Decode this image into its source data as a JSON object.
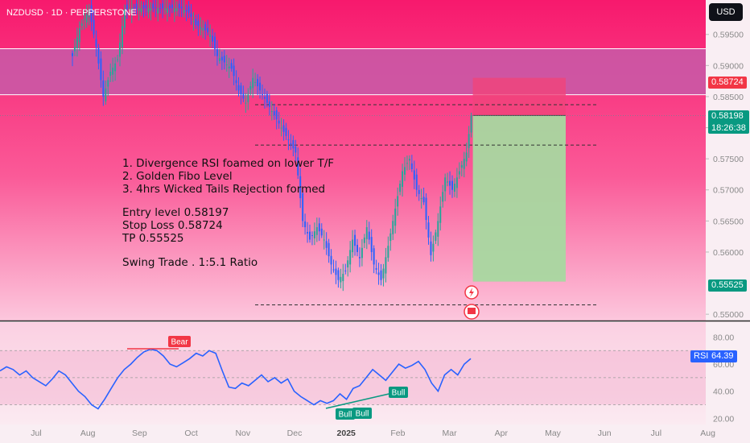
{
  "symbol": "NZDUSD · 1D · PEPPERSTONE",
  "currency_button": "USD",
  "notes": [
    "1. Divergence RSI foamed on lower T/F",
    "2. Golden Fibo Level",
    "3. 4hrs  Wicked Tails Rejection formed",
    "",
    "Entry level 0.58197",
    "Stop Loss 0.58724",
    "TP 0.55525",
    "",
    "Swing Trade . 1:5.1 Ratio"
  ],
  "price_tags": {
    "stop": "0.58724",
    "current": "0.58198",
    "countdown": "18:26:38",
    "target": "0.55525"
  },
  "rsi_tag": {
    "label": "RSI",
    "value": "64.39"
  },
  "colors": {
    "up": "#26a69a",
    "down": "#2962ff",
    "stop_zone": "#f0447a",
    "target_zone": "#a8d8a0",
    "resistance_zone": "#c85aa8",
    "background_top": "#f91c70",
    "rsi_line": "#2962ff",
    "bear_label": "#f23645",
    "bull_label": "#089981"
  },
  "chart_data": [
    {
      "type": "candlestick",
      "y_ticks": [
        "0.59500",
        "0.59000",
        "0.58500",
        "0.58000",
        "0.57500",
        "0.57000",
        "0.56500",
        "0.56000",
        "0.55000"
      ],
      "ylim": [
        0.5495,
        0.5995
      ],
      "x_ticks": [
        "Jul",
        "Aug",
        "Sep",
        "Oct",
        "Nov",
        "Dec",
        "2025",
        "Feb",
        "Mar",
        "Apr",
        "May",
        "Jun",
        "Jul",
        "Aug"
      ],
      "price_path": [
        [
          0,
          0.5915
        ],
        [
          3,
          0.596
        ],
        [
          7,
          0.599
        ],
        [
          10,
          0.593
        ],
        [
          13,
          0.585
        ],
        [
          16,
          0.589
        ],
        [
          19,
          0.591
        ],
        [
          22,
          0.599
        ],
        [
          25,
          0.5992
        ],
        [
          28,
          0.5992
        ],
        [
          31,
          0.5992
        ],
        [
          34,
          0.5992
        ],
        [
          37,
          0.5992
        ],
        [
          40,
          0.5992
        ],
        [
          43,
          0.5992
        ],
        [
          46,
          0.5992
        ],
        [
          49,
          0.5985
        ],
        [
          52,
          0.5965
        ],
        [
          55,
          0.596
        ],
        [
          58,
          0.595
        ],
        [
          61,
          0.5915
        ],
        [
          64,
          0.5905
        ],
        [
          67,
          0.5895
        ],
        [
          70,
          0.586
        ],
        [
          73,
          0.584
        ],
        [
          76,
          0.588
        ],
        [
          79,
          0.586
        ],
        [
          82,
          0.584
        ],
        [
          85,
          0.582
        ],
        [
          88,
          0.58
        ],
        [
          91,
          0.578
        ],
        [
          94,
          0.576
        ],
        [
          97,
          0.565
        ],
        [
          100,
          0.562
        ],
        [
          103,
          0.564
        ],
        [
          106,
          0.562
        ],
        [
          109,
          0.558
        ],
        [
          112,
          0.5555
        ],
        [
          115,
          0.557
        ],
        [
          118,
          0.562
        ],
        [
          121,
          0.559
        ],
        [
          124,
          0.564
        ],
        [
          127,
          0.558
        ],
        [
          130,
          0.5555
        ],
        [
          133,
          0.561
        ],
        [
          136,
          0.567
        ],
        [
          139,
          0.573
        ],
        [
          142,
          0.575
        ],
        [
          145,
          0.57
        ],
        [
          148,
          0.568
        ],
        [
          151,
          0.5595
        ],
        [
          154,
          0.565
        ],
        [
          157,
          0.572
        ],
        [
          160,
          0.57
        ],
        [
          163,
          0.573
        ],
        [
          166,
          0.576
        ],
        [
          168,
          0.582
        ]
      ],
      "levels": [
        {
          "name": "stop",
          "value": 0.58724
        },
        {
          "name": "entry",
          "value": 0.58197
        },
        {
          "name": "target",
          "value": 0.55525
        }
      ],
      "resistance_zone": [
        0.5853,
        0.5927
      ],
      "dashed_levels": [
        0.5837,
        0.5772,
        0.5515
      ]
    },
    {
      "type": "line",
      "title": "RSI",
      "y_ticks": [
        "80.00",
        "60.00",
        "40.00",
        "20.00"
      ],
      "ylim": [
        16,
        88
      ],
      "series": [
        {
          "values": [
            55,
            58,
            56,
            52,
            55,
            50,
            47,
            44,
            49,
            55,
            52,
            46,
            40,
            36,
            30,
            27,
            34,
            42,
            50,
            56,
            60,
            65,
            69,
            71,
            70,
            66,
            60,
            58,
            61,
            64,
            68,
            66,
            70,
            68,
            55,
            43,
            42,
            46,
            44,
            48,
            52,
            47,
            50,
            46,
            49,
            40,
            36,
            33,
            30,
            33,
            31,
            33,
            38,
            34,
            42,
            44,
            50,
            56,
            52,
            48,
            54,
            60,
            57,
            59,
            62,
            56,
            46,
            40,
            52,
            56,
            52,
            60,
            64
          ]
        }
      ],
      "annotations": [
        "Bear",
        "Bull",
        "Bull",
        "Bull"
      ]
    }
  ]
}
